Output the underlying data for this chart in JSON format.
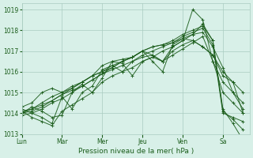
{
  "title": "",
  "xlabel": "Pression niveau de la mer( hPa )",
  "ylabel": "",
  "bg_color": "#d8f0e8",
  "grid_color": "#aaccc0",
  "line_color": "#1a5c1a",
  "ylim": [
    1013.0,
    1019.3
  ],
  "yticks": [
    1013,
    1014,
    1015,
    1016,
    1017,
    1018,
    1019
  ],
  "day_positions": [
    0,
    48,
    96,
    144,
    192,
    240,
    264
  ],
  "day_labels": [
    "Lun",
    "Mar",
    "Mer",
    "Jeu",
    "Ven",
    "Sa"
  ],
  "xlim": [
    0,
    272
  ],
  "series": [
    [
      0,
      1014.1,
      12,
      1014.2,
      24,
      1014.5,
      36,
      1014.8,
      48,
      1015.0,
      60,
      1015.2,
      72,
      1015.5,
      84,
      1015.8,
      96,
      1016.0,
      108,
      1016.2,
      120,
      1016.5,
      132,
      1016.7,
      144,
      1017.0,
      156,
      1017.2,
      168,
      1017.3,
      180,
      1017.5,
      192,
      1017.8,
      204,
      1018.0,
      216,
      1018.2,
      228,
      1017.5,
      240,
      1014.2,
      252,
      1013.5,
      264,
      1012.7
    ],
    [
      0,
      1014.0,
      12,
      1014.1,
      24,
      1014.3,
      36,
      1014.6,
      48,
      1014.9,
      60,
      1015.1,
      72,
      1015.3,
      84,
      1015.6,
      96,
      1015.9,
      108,
      1016.1,
      120,
      1016.3,
      132,
      1016.5,
      144,
      1016.8,
      156,
      1017.0,
      168,
      1017.2,
      180,
      1017.4,
      192,
      1017.7,
      204,
      1017.9,
      216,
      1018.1,
      228,
      1017.3,
      240,
      1014.0,
      252,
      1013.8,
      264,
      1013.6
    ],
    [
      0,
      1014.2,
      12,
      1014.0,
      24,
      1013.8,
      36,
      1013.5,
      48,
      1014.8,
      60,
      1014.2,
      72,
      1015.0,
      84,
      1015.3,
      96,
      1016.1,
      108,
      1016.3,
      120,
      1016.0,
      132,
      1016.5,
      144,
      1016.7,
      156,
      1016.8,
      168,
      1016.5,
      180,
      1017.0,
      192,
      1017.3,
      204,
      1017.5,
      216,
      1017.2,
      228,
      1016.8,
      240,
      1015.8,
      252,
      1015.5,
      264,
      1014.0
    ],
    [
      0,
      1014.0,
      12,
      1014.3,
      24,
      1014.1,
      36,
      1013.8,
      48,
      1013.9,
      60,
      1015.0,
      72,
      1015.4,
      84,
      1015.0,
      96,
      1015.7,
      108,
      1016.5,
      120,
      1016.4,
      132,
      1015.8,
      144,
      1016.5,
      156,
      1016.7,
      168,
      1017.0,
      180,
      1017.2,
      192,
      1017.5,
      204,
      1017.8,
      216,
      1018.3,
      228,
      1017.5,
      240,
      1014.1,
      252,
      1013.7,
      264,
      1013.2
    ],
    [
      0,
      1014.3,
      12,
      1014.5,
      24,
      1015.0,
      36,
      1015.2,
      48,
      1015.0,
      60,
      1015.3,
      72,
      1015.5,
      84,
      1015.8,
      96,
      1016.3,
      108,
      1016.5,
      120,
      1016.6,
      132,
      1016.7,
      144,
      1017.0,
      156,
      1017.2,
      168,
      1017.3,
      180,
      1017.4,
      192,
      1017.6,
      204,
      1017.8,
      216,
      1017.9,
      228,
      1017.2,
      240,
      1016.2,
      252,
      1015.0,
      264,
      1014.2
    ],
    [
      0,
      1014.1,
      12,
      1013.8,
      24,
      1013.6,
      36,
      1013.4,
      48,
      1014.1,
      60,
      1014.4,
      72,
      1014.7,
      84,
      1015.0,
      96,
      1015.5,
      108,
      1015.8,
      120,
      1016.0,
      132,
      1016.2,
      144,
      1016.5,
      156,
      1016.7,
      168,
      1016.5,
      180,
      1016.8,
      192,
      1017.1,
      204,
      1017.4,
      216,
      1017.7,
      228,
      1016.5,
      240,
      1015.0,
      252,
      1014.5,
      264,
      1014.0
    ],
    [
      0,
      1013.9,
      12,
      1014.0,
      24,
      1014.2,
      36,
      1014.5,
      48,
      1014.7,
      60,
      1015.0,
      72,
      1015.3,
      84,
      1015.6,
      96,
      1015.9,
      108,
      1016.2,
      120,
      1016.5,
      132,
      1016.7,
      144,
      1017.0,
      156,
      1016.8,
      168,
      1016.5,
      180,
      1017.2,
      192,
      1017.5,
      204,
      1019.0,
      216,
      1018.5,
      228,
      1016.5,
      240,
      1015.5,
      252,
      1015.0,
      264,
      1014.5
    ],
    [
      0,
      1014.0,
      12,
      1014.2,
      24,
      1014.4,
      36,
      1014.6,
      48,
      1014.9,
      60,
      1015.2,
      72,
      1015.5,
      84,
      1015.8,
      96,
      1016.0,
      108,
      1016.3,
      120,
      1016.5,
      132,
      1016.7,
      144,
      1017.0,
      156,
      1016.5,
      168,
      1016.0,
      180,
      1017.3,
      192,
      1017.6,
      204,
      1017.5,
      216,
      1017.2,
      228,
      1016.8,
      240,
      1016.0,
      252,
      1015.5,
      264,
      1015.0
    ]
  ]
}
